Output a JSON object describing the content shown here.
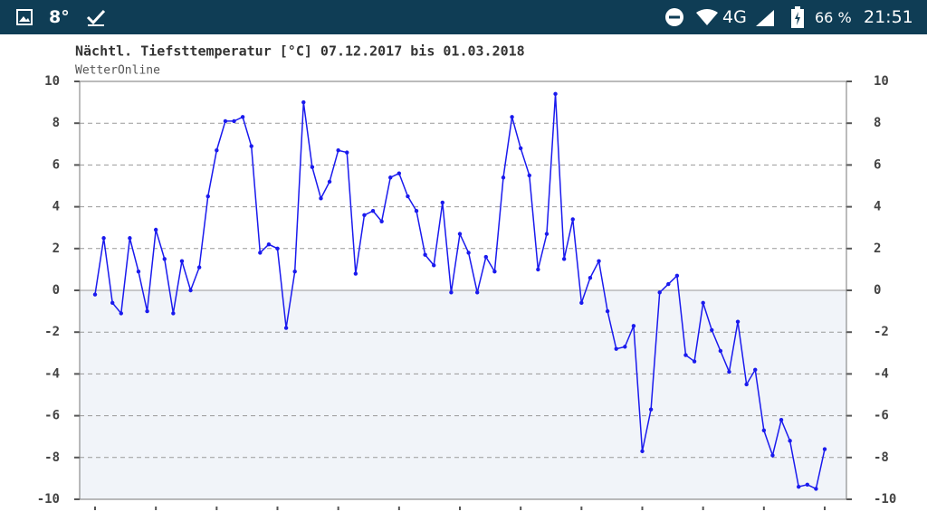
{
  "status_bar": {
    "temperature": "8°",
    "network": "4G",
    "battery": "66 %",
    "time": "21:51"
  },
  "chart_data": {
    "type": "line",
    "title": "Nächtl. Tiefsttemperatur [°C] 07.12.2017 bis 01.03.2018",
    "subtitle": "WetterOnline",
    "values": [
      -0.2,
      2.5,
      -0.6,
      -1.1,
      2.5,
      0.9,
      -1.0,
      2.9,
      1.5,
      -1.1,
      1.4,
      0.0,
      1.1,
      4.5,
      6.7,
      8.1,
      8.1,
      8.3,
      6.9,
      1.8,
      2.2,
      2.0,
      -1.8,
      0.9,
      9.0,
      5.9,
      4.4,
      5.2,
      6.7,
      6.6,
      0.8,
      3.6,
      3.8,
      3.3,
      5.4,
      5.6,
      4.5,
      3.8,
      1.7,
      1.2,
      4.2,
      -0.1,
      2.7,
      1.8,
      -0.1,
      1.6,
      0.9,
      5.4,
      8.3,
      6.8,
      5.5,
      1.0,
      2.7,
      9.4,
      1.5,
      3.4,
      -0.6,
      0.6,
      1.4,
      -1.0,
      -2.8,
      -2.7,
      -1.7,
      -7.7,
      -5.7,
      -0.1,
      0.3,
      0.7,
      -3.1,
      -3.4,
      -0.6,
      -1.9,
      -2.9,
      -3.9,
      -1.5,
      -4.5,
      -3.8,
      -6.7,
      -7.9,
      -6.2,
      -7.2,
      -9.4,
      -9.3,
      -9.5,
      -7.6
    ],
    "color": "#1a1aee",
    "ylim": [
      -10,
      10
    ],
    "yticks": [
      -10,
      -8,
      -6,
      -4,
      -2,
      0,
      2,
      4,
      6,
      8,
      10
    ],
    "grid": true
  }
}
